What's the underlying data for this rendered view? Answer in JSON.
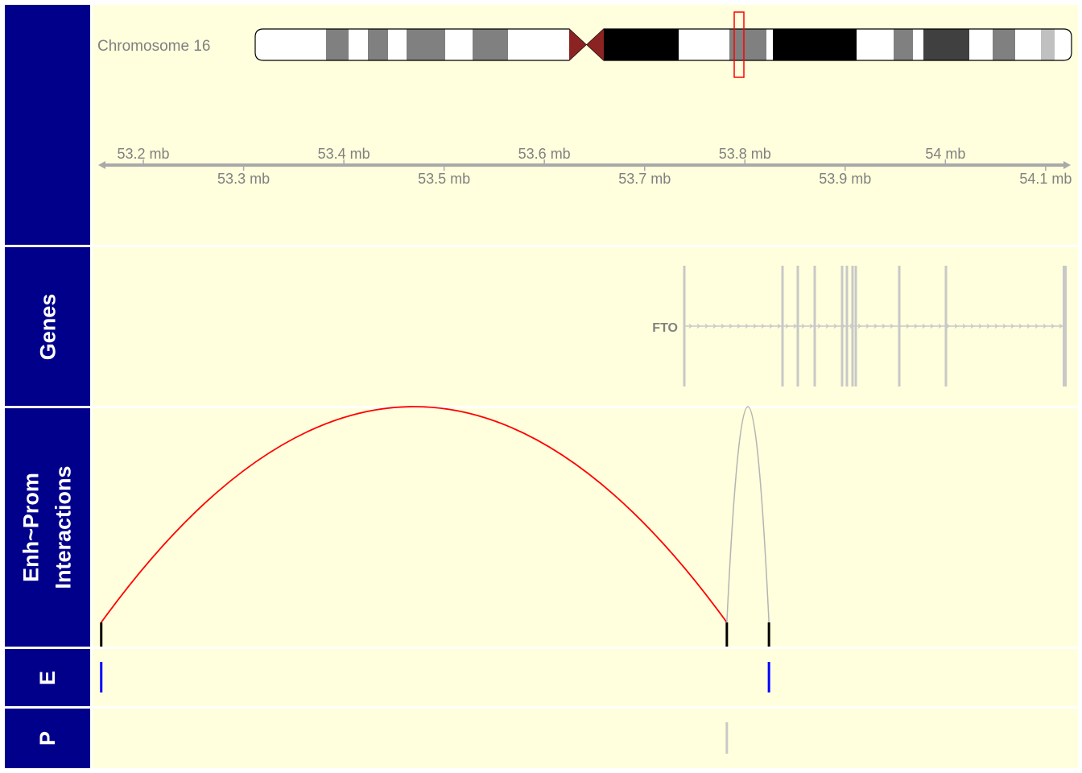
{
  "ideogram": {
    "chromosome_label": "Chromosome 16"
  },
  "axis": {
    "unit": "mb",
    "range_mb": [
      53.155,
      54.125
    ],
    "ticks_top": [
      53.2,
      53.4,
      53.6,
      53.8,
      54.0
    ],
    "ticks_bottom": [
      53.3,
      53.5,
      53.7,
      53.9,
      54.1
    ],
    "labels_top": [
      "53.2 mb",
      "53.4 mb",
      "53.6 mb",
      "53.8 mb",
      "54 mb"
    ],
    "labels_bottom": [
      "53.3 mb",
      "53.5 mb",
      "53.7 mb",
      "53.9 mb",
      "54.1 mb"
    ],
    "color": "#a9a9a9"
  },
  "tracks": [
    {
      "id": "genes",
      "label": "Genes"
    },
    {
      "id": "interactions",
      "label": "Enh~Prom Interactions"
    },
    {
      "id": "enhancers",
      "label": "E"
    },
    {
      "id": "promoters",
      "label": "P"
    }
  ],
  "gene": {
    "name": "FTO",
    "strand": "+",
    "start_mb": 53.737,
    "end_mb": 54.146,
    "color": "#c8c8c8"
  },
  "interactions": [
    {
      "from_mb": 53.158,
      "to_mb": 53.782,
      "color": "#ff0000"
    },
    {
      "from_mb": 53.782,
      "to_mb": 53.824,
      "color": "#b4b4b4"
    }
  ],
  "anchors_mb": [
    53.158,
    53.782,
    53.824
  ],
  "enhancers_mb": [
    53.158,
    53.824
  ],
  "promoters_mb": [
    53.782
  ],
  "colors": {
    "label_bg": "#00008b",
    "track_bg": "#ffffdd",
    "enhancer": "#0000ff",
    "promoter": "#c8c8c8",
    "anchor": "#000000",
    "highlight": "#ff0000"
  }
}
